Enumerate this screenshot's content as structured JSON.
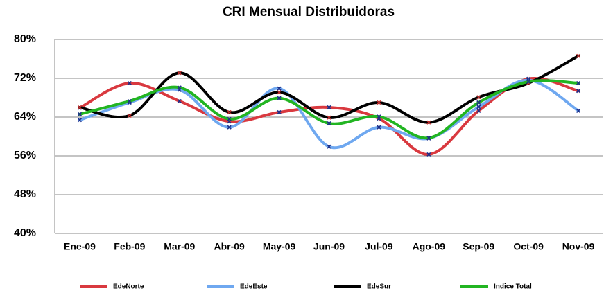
{
  "chart_data": {
    "type": "line",
    "title": "CRI Mensual Distribuidoras",
    "categories": [
      "Ene-09",
      "Feb-09",
      "Mar-09",
      "Abr-09",
      "May-09",
      "Jun-09",
      "Jul-09",
      "Ago-09",
      "Sep-09",
      "Oct-09",
      "Nov-09"
    ],
    "series": [
      {
        "name": "EdeNorte",
        "color": "#d9393f",
        "values": [
          65.9,
          71,
          67.3,
          63.1,
          65,
          66,
          63.7,
          56.3,
          65.3,
          71.9,
          69.4
        ]
      },
      {
        "name": "EdeEste",
        "color": "#6fa8f0",
        "values": [
          63.4,
          67,
          69.6,
          61.9,
          69.9,
          57.9,
          61.9,
          59.6,
          66.1,
          71.6,
          65.3
        ]
      },
      {
        "name": "EdeSur",
        "color": "#000000",
        "values": [
          66,
          64.3,
          73.1,
          65,
          69.1,
          63.9,
          67,
          62.9,
          68.1,
          71,
          76.6
        ]
      },
      {
        "name": "Indice Total",
        "color": "#22b522",
        "values": [
          64.6,
          67.3,
          70.1,
          63.6,
          67.9,
          62.7,
          64.1,
          59.7,
          67,
          71.3,
          71
        ]
      }
    ],
    "ylim": [
      40,
      80
    ],
    "yticks": [
      {
        "value": 40,
        "label": "40%"
      },
      {
        "value": 48,
        "label": "48%"
      },
      {
        "value": 56,
        "label": "56%"
      },
      {
        "value": 64,
        "label": "64%"
      },
      {
        "value": 72,
        "label": "72%"
      },
      {
        "value": 80,
        "label": "80%"
      }
    ],
    "grid": true,
    "legend": "bottom"
  }
}
